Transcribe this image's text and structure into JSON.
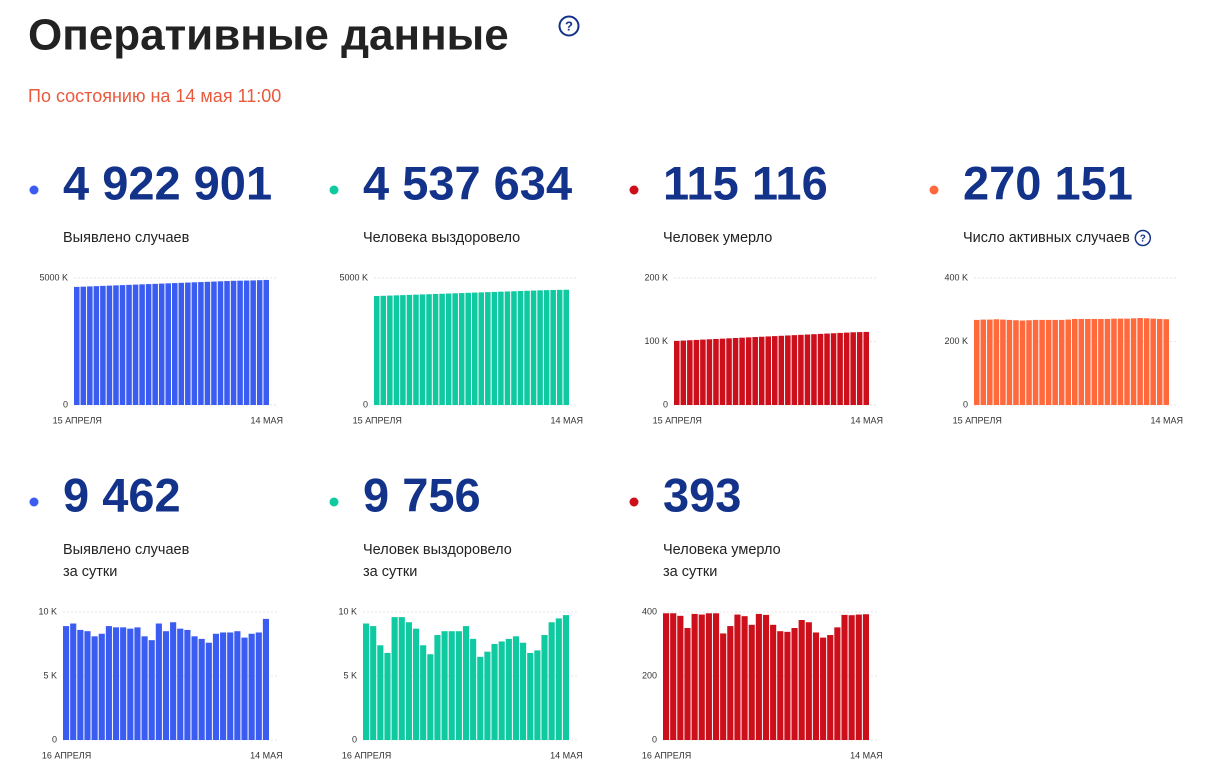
{
  "header": {
    "title": "Оперативные данные",
    "hint": "?",
    "subtitle": "По состоянию на 14 мая 11:00"
  },
  "chart_data": [
    {
      "type": "bar",
      "color": "#3b5cf0",
      "value": "4 922 901",
      "label": [
        "Выявлено случаев"
      ],
      "categories": [
        "15 АПРЕЛЯ",
        null,
        null,
        null,
        null,
        null,
        null,
        null,
        null,
        null,
        null,
        null,
        null,
        null,
        null,
        null,
        null,
        null,
        null,
        null,
        null,
        null,
        null,
        null,
        null,
        null,
        null,
        null,
        null,
        "14 МАЯ"
      ],
      "values": [
        4650000,
        4660000,
        4670000,
        4680000,
        4690000,
        4700000,
        4710000,
        4720000,
        4730000,
        4740000,
        4750000,
        4760000,
        4770000,
        4780000,
        4790000,
        4800000,
        4810000,
        4820000,
        4830000,
        4840000,
        4850000,
        4860000,
        4870000,
        4880000,
        4890000,
        4895000,
        4900000,
        4905000,
        4914000,
        4922901
      ],
      "ylim": [
        0,
        5000000
      ],
      "yticks": [
        0,
        {
          "value": 5000000,
          "label": "5000 K"
        }
      ]
    },
    {
      "type": "bar",
      "color": "#0fc9a1",
      "value": "4 537 634",
      "label": [
        "Человека выздоровело"
      ],
      "categories": [
        "15 АПРЕЛЯ",
        null,
        null,
        null,
        null,
        null,
        null,
        null,
        null,
        null,
        null,
        null,
        null,
        null,
        null,
        null,
        null,
        null,
        null,
        null,
        null,
        null,
        null,
        null,
        null,
        null,
        null,
        null,
        null,
        "14 МАЯ"
      ],
      "values": [
        4290000,
        4299000,
        4308000,
        4317000,
        4326000,
        4335000,
        4344000,
        4353000,
        4362000,
        4371000,
        4380000,
        4389000,
        4398000,
        4407000,
        4416000,
        4425000,
        4434000,
        4443000,
        4452000,
        4461000,
        4470000,
        4479000,
        4488000,
        4497000,
        4506000,
        4515000,
        4522000,
        4528000,
        4533000,
        4537634
      ],
      "ylim": [
        0,
        5000000
      ],
      "yticks": [
        0,
        {
          "value": 5000000,
          "label": "5000 K"
        }
      ]
    },
    {
      "type": "bar",
      "color": "#cc0f1a",
      "value": "115 116",
      "label": [
        "Человек умерло"
      ],
      "categories": [
        "15 АПРЕЛЯ",
        null,
        null,
        null,
        null,
        null,
        null,
        null,
        null,
        null,
        null,
        null,
        null,
        null,
        null,
        null,
        null,
        null,
        null,
        null,
        null,
        null,
        null,
        null,
        null,
        null,
        null,
        null,
        null,
        "14 МАЯ"
      ],
      "values": [
        101000,
        101500,
        102000,
        102500,
        103000,
        103500,
        104000,
        104500,
        105000,
        105500,
        106000,
        106500,
        107000,
        107500,
        108000,
        108500,
        109000,
        109500,
        110000,
        110500,
        111000,
        111500,
        112000,
        112500,
        113000,
        113500,
        114000,
        114500,
        114800,
        115116
      ],
      "ylim": [
        0,
        200000
      ],
      "yticks": [
        0,
        {
          "value": 100000,
          "label": "100 K"
        },
        {
          "value": 200000,
          "label": "200 K"
        }
      ]
    },
    {
      "type": "bar",
      "color": "#ff693c",
      "value": "270 151",
      "label": [
        "Число активных случаев"
      ],
      "hint": "?",
      "categories": [
        "15 АПРЕЛЯ",
        null,
        null,
        null,
        null,
        null,
        null,
        null,
        null,
        null,
        null,
        null,
        null,
        null,
        null,
        null,
        null,
        null,
        null,
        null,
        null,
        null,
        null,
        null,
        null,
        null,
        null,
        null,
        null,
        "14 МАЯ"
      ],
      "values": [
        268000,
        269000,
        269000,
        270000,
        269000,
        268000,
        267000,
        266000,
        267000,
        268000,
        268000,
        268000,
        268000,
        268000,
        269000,
        271000,
        271000,
        271000,
        271000,
        271000,
        271000,
        272000,
        272000,
        272000,
        273000,
        274000,
        273000,
        272000,
        271000,
        270151
      ],
      "ylim": [
        0,
        400000
      ],
      "yticks": [
        0,
        {
          "value": 200000,
          "label": "200 K"
        },
        {
          "value": 400000,
          "label": "400 K"
        }
      ]
    },
    {
      "type": "bar",
      "color": "#3b5cf0",
      "value": "9 462",
      "label": [
        "Выявлено случаев",
        "за сутки"
      ],
      "categories": [
        "16 АПРЕЛЯ",
        null,
        null,
        null,
        null,
        null,
        null,
        null,
        null,
        null,
        null,
        null,
        null,
        null,
        null,
        null,
        null,
        null,
        null,
        null,
        null,
        null,
        null,
        null,
        null,
        null,
        null,
        null,
        "14 МАЯ"
      ],
      "values": [
        8900,
        9100,
        8600,
        8500,
        8100,
        8300,
        8900,
        8800,
        8800,
        8700,
        8800,
        8100,
        7800,
        9100,
        8500,
        9200,
        8700,
        8600,
        8100,
        7900,
        7600,
        8300,
        8400,
        8400,
        8500,
        8000,
        8300,
        8400,
        9462
      ],
      "ylim": [
        0,
        10000
      ],
      "yticks": [
        0,
        {
          "value": 5000,
          "label": "5 K"
        },
        {
          "value": 10000,
          "label": "10 K"
        }
      ]
    },
    {
      "type": "bar",
      "color": "#0fc9a1",
      "value": "9 756",
      "label": [
        "Человек выздоровело",
        "за сутки"
      ],
      "categories": [
        "16 АПРЕЛЯ",
        null,
        null,
        null,
        null,
        null,
        null,
        null,
        null,
        null,
        null,
        null,
        null,
        null,
        null,
        null,
        null,
        null,
        null,
        null,
        null,
        null,
        null,
        null,
        null,
        null,
        null,
        null,
        "14 МАЯ"
      ],
      "values": [
        9100,
        8900,
        7400,
        6800,
        9600,
        9600,
        9200,
        8700,
        7400,
        6700,
        8200,
        8500,
        8500,
        8500,
        8900,
        7900,
        6500,
        6900,
        7500,
        7700,
        7900,
        8100,
        7600,
        6800,
        7000,
        8200,
        9200,
        9500,
        9756
      ],
      "ylim": [
        0,
        10000
      ],
      "yticks": [
        0,
        {
          "value": 5000,
          "label": "5 K"
        },
        {
          "value": 10000,
          "label": "10 K"
        }
      ]
    },
    {
      "type": "bar",
      "color": "#cc0f1a",
      "value": "393",
      "label": [
        "Человека умерло",
        "за сутки"
      ],
      "categories": [
        "16 АПРЕЛЯ",
        null,
        null,
        null,
        null,
        null,
        null,
        null,
        null,
        null,
        null,
        null,
        null,
        null,
        null,
        null,
        null,
        null,
        null,
        null,
        null,
        null,
        null,
        null,
        null,
        null,
        null,
        null,
        "14 МАЯ"
      ],
      "values": [
        396,
        396,
        388,
        350,
        394,
        392,
        396,
        396,
        333,
        356,
        392,
        387,
        360,
        394,
        391,
        360,
        340,
        338,
        350,
        375,
        368,
        336,
        320,
        328,
        352,
        391,
        390,
        392,
        393
      ],
      "ylim": [
        0,
        400
      ],
      "yticks": [
        0,
        200,
        400
      ]
    }
  ]
}
